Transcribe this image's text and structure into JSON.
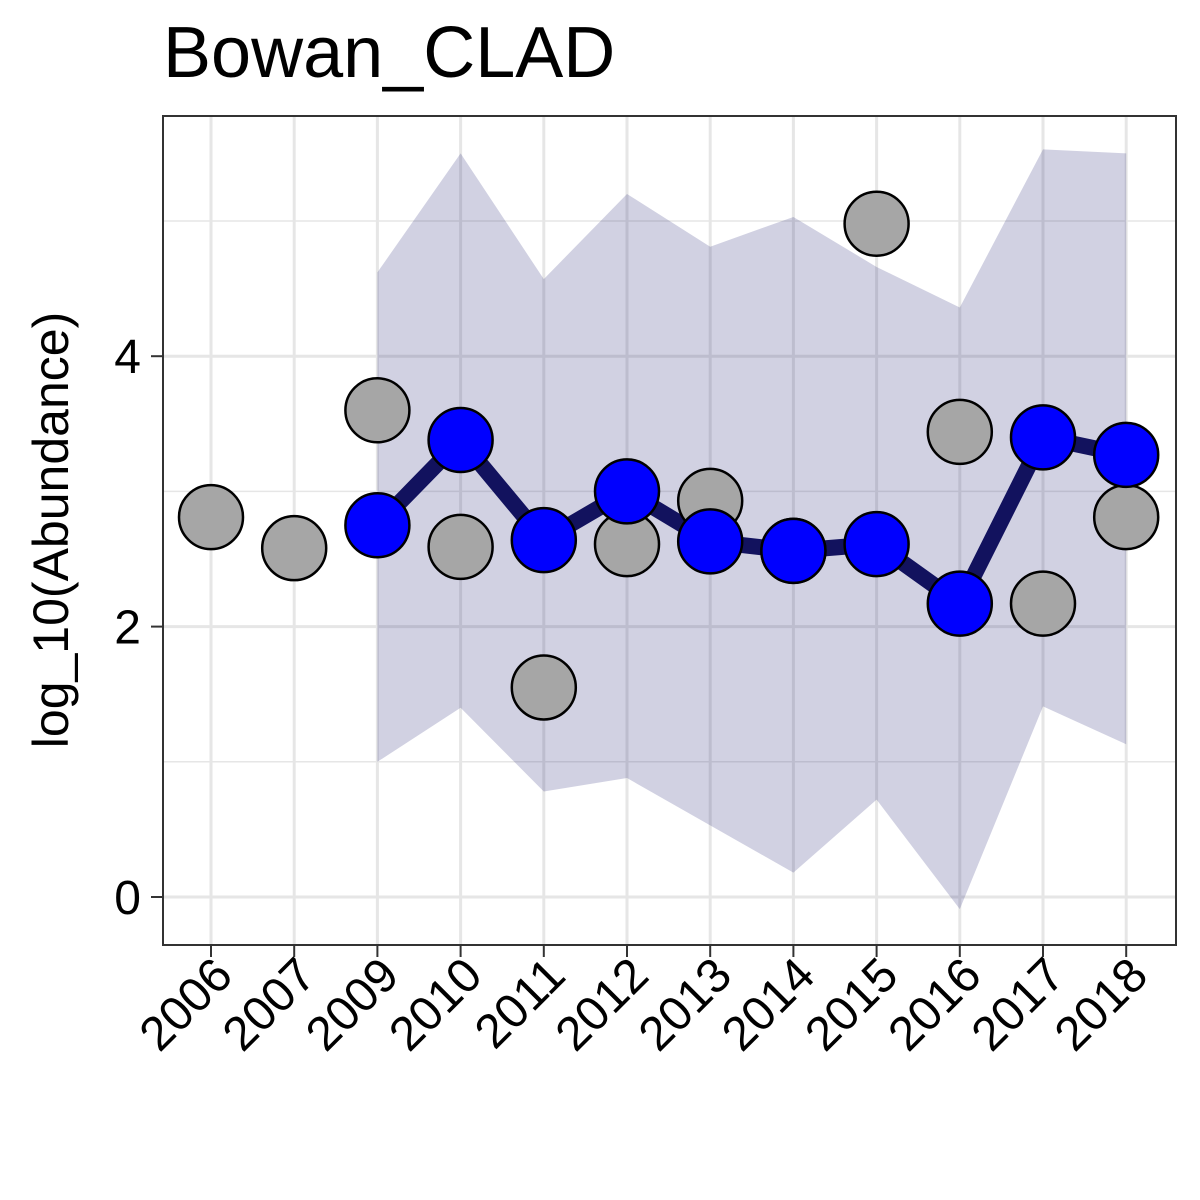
{
  "chart_data": {
    "type": "line",
    "title": "Bowan_CLAD",
    "xlabel": "",
    "ylabel": "log_10(Abundance)",
    "categories": [
      "2006",
      "2007",
      "2009",
      "2010",
      "2011",
      "2012",
      "2013",
      "2014",
      "2015",
      "2016",
      "2017",
      "2018"
    ],
    "yticks": [
      "0",
      "2",
      "4"
    ],
    "ylim": [
      -0.35,
      5.78
    ],
    "grid": true,
    "legend": "none",
    "colors": {
      "band": "#1a1a6e",
      "line": "#12125e",
      "estimate_point": "#0000ff",
      "observed_point": "#a6a6a6",
      "grid": "#e6e6e6",
      "frame": "#333333"
    },
    "series": [
      {
        "kind": "band",
        "x": [
          "2009",
          "2010",
          "2011",
          "2012",
          "2013",
          "2014",
          "2015",
          "2016",
          "2017",
          "2018"
        ],
        "lower": [
          1.0,
          1.4,
          0.78,
          0.88,
          0.53,
          0.18,
          0.72,
          -0.09,
          1.41,
          1.13
        ],
        "upper": [
          4.62,
          5.5,
          4.57,
          5.2,
          4.81,
          5.03,
          4.66,
          4.36,
          5.53,
          5.5
        ]
      },
      {
        "kind": "line",
        "x": [
          "2009",
          "2010",
          "2011",
          "2012",
          "2013",
          "2014",
          "2015",
          "2016",
          "2017",
          "2018"
        ],
        "values": [
          2.75,
          3.38,
          2.64,
          3.0,
          2.63,
          2.56,
          2.61,
          2.17,
          3.4,
          3.27
        ]
      },
      {
        "kind": "observed",
        "x": [
          "2006",
          "2007",
          "2009",
          "2010",
          "2011",
          "2012",
          "2013",
          "2014",
          "2015",
          "2016",
          "2017",
          "2018"
        ],
        "values": [
          2.81,
          2.58,
          3.6,
          2.59,
          1.55,
          2.61,
          2.93,
          2.56,
          4.98,
          3.44,
          2.17,
          2.81
        ]
      }
    ]
  }
}
